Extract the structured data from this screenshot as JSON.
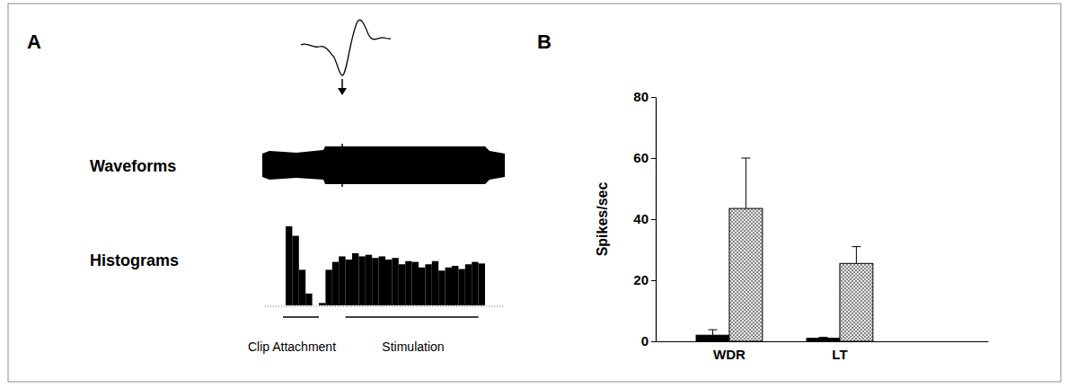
{
  "chart_data": [
    {
      "type": "bar",
      "title": "A",
      "annotations": [
        "Waveforms",
        "Histograms",
        "Clip Attachment",
        "Stimulation"
      ],
      "values": [
        100,
        88,
        45,
        15,
        0,
        3,
        45,
        55,
        62,
        58,
        66,
        62,
        64,
        60,
        62,
        58,
        60,
        52,
        56,
        55,
        48,
        52,
        56,
        44,
        48,
        50,
        46,
        52,
        55,
        53
      ],
      "color": "#000000",
      "ylim": [
        0,
        100
      ],
      "tick_labels": false
    },
    {
      "type": "bar",
      "title": "B",
      "y_label": "Spikes/sec",
      "categories": [
        "WDR",
        "LT"
      ],
      "series": [
        {
          "color": "#000000",
          "values": [
            2,
            1
          ],
          "errors": [
            1.8,
            0.3
          ]
        },
        {
          "color": "#6e6e6e",
          "values": [
            43.5,
            25.5
          ],
          "errors": [
            16.5,
            5.5
          ]
        }
      ],
      "ylim": [
        0,
        80
      ],
      "yticks": [
        0,
        20,
        40,
        60,
        80
      ]
    }
  ]
}
